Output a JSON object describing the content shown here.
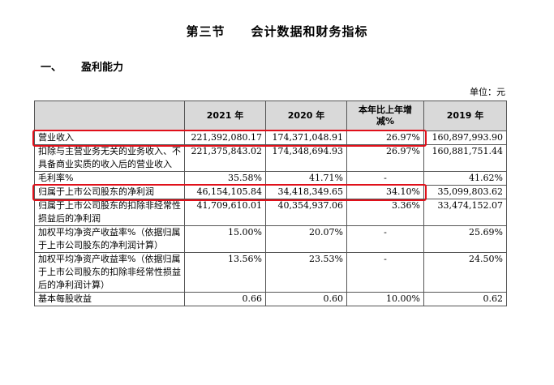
{
  "section_title": "第三节　　会计数据和财务指标",
  "subsection": {
    "number": "一、",
    "title": "盈利能力"
  },
  "unit": "单位：元",
  "table": {
    "headers": [
      "",
      "2021 年",
      "2020 年",
      "本年比上年增减%",
      "2019 年"
    ],
    "rows": [
      {
        "label": "营业收入",
        "y2021": "221,392,080.17",
        "y2020": "174,371,048.91",
        "change": "26.97%",
        "y2019": "160,897,993.90"
      },
      {
        "label": "扣除与主营业务无关的业务收入、不具备商业实质的收入后的营业收入",
        "y2021": "221,375,843.02",
        "y2020": "174,348,694.93",
        "change": "26.97%",
        "y2019": "160,881,751.44"
      },
      {
        "label": "毛利率%",
        "y2021": "35.58%",
        "y2020": "41.71%",
        "change": "-",
        "y2019": "41.62%"
      },
      {
        "label": "归属于上市公司股东的净利润",
        "y2021": "46,154,105.84",
        "y2020": "34,418,349.65",
        "change": "34.10%",
        "y2019": "35,099,803.62"
      },
      {
        "label": "归属于上市公司股东的扣除非经常性损益后的净利润",
        "y2021": "41,709,610.01",
        "y2020": "40,354,937.06",
        "change": "3.36%",
        "y2019": "33,474,152.07"
      },
      {
        "label": "加权平均净资产收益率%（依据归属于上市公司股东的净利润计算）",
        "y2021": "15.00%",
        "y2020": "20.07%",
        "change": "-",
        "y2019": "25.69%"
      },
      {
        "label": "加权平均净资产收益率%（依据归属于上市公司股东的扣除非经常性损益后的净利润计算）",
        "y2021": "13.56%",
        "y2020": "23.53%",
        "change": "-",
        "y2019": "24.50%"
      },
      {
        "label": "基本每股收益",
        "y2021": "0.66",
        "y2020": "0.60",
        "change": "10.00%",
        "y2019": "0.62"
      }
    ]
  },
  "highlight_color": "#e0101a"
}
